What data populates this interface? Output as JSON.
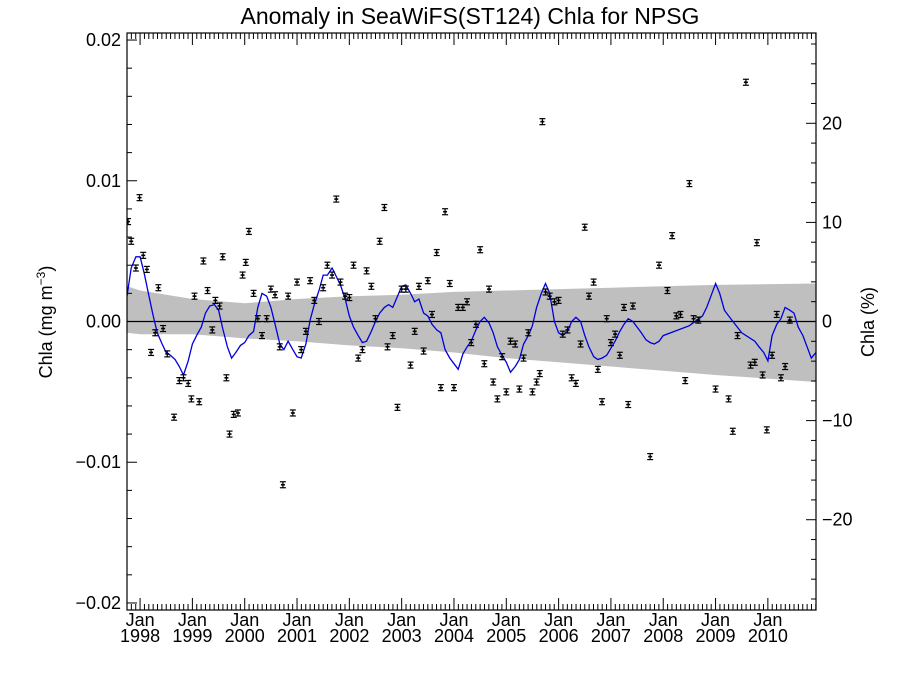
{
  "chart_data": {
    "type": "scatter",
    "title": "Anomaly in SeaWiFS(ST124) Chla for NPSG",
    "ylabel_left": "Chla (mg m",
    "ylabel_left_exponent": "−3",
    "ylabel_left_close": ")",
    "ylabel_right": "Chla (%)",
    "xlim": [
      1997.75,
      2010.92
    ],
    "ylim": [
      -0.0205,
      0.0205
    ],
    "y_ticks": [
      {
        "value": 0.02,
        "label": "0.02"
      },
      {
        "value": 0.01,
        "label": "0.01"
      },
      {
        "value": 0.0,
        "label": "0.00"
      },
      {
        "value": -0.01,
        "label": "−0.01"
      },
      {
        "value": -0.02,
        "label": "−0.02"
      }
    ],
    "y2_ticks": [
      {
        "value": 20,
        "label": "20"
      },
      {
        "value": 10,
        "label": "10"
      },
      {
        "value": 0,
        "label": "0"
      },
      {
        "value": -10,
        "label": "−10"
      },
      {
        "value": -20,
        "label": "−20"
      }
    ],
    "y2_per_y1": 1420,
    "x_ticks": [
      {
        "value": 1998.0,
        "month": "Jan",
        "year": "1998"
      },
      {
        "value": 1999.0,
        "month": "Jan",
        "year": "1999"
      },
      {
        "value": 2000.0,
        "month": "Jan",
        "year": "2000"
      },
      {
        "value": 2001.0,
        "month": "Jan",
        "year": "2001"
      },
      {
        "value": 2002.0,
        "month": "Jan",
        "year": "2002"
      },
      {
        "value": 2003.0,
        "month": "Jan",
        "year": "2003"
      },
      {
        "value": 2004.0,
        "month": "Jan",
        "year": "2004"
      },
      {
        "value": 2005.0,
        "month": "Jan",
        "year": "2005"
      },
      {
        "value": 2006.0,
        "month": "Jan",
        "year": "2006"
      },
      {
        "value": 2007.0,
        "month": "Jan",
        "year": "2007"
      },
      {
        "value": 2008.0,
        "month": "Jan",
        "year": "2008"
      },
      {
        "value": 2009.0,
        "month": "Jan",
        "year": "2009"
      },
      {
        "value": 2010.0,
        "month": "Jan",
        "year": "2010"
      }
    ],
    "zero_line": 0.0,
    "uncertainty_band": {
      "color": "#bfbfbf",
      "upper": [
        [
          1997.75,
          0.0025
        ],
        [
          1998.0,
          0.0022
        ],
        [
          1999.0,
          0.0016
        ],
        [
          2000.0,
          0.0013
        ],
        [
          2001.0,
          0.0016
        ],
        [
          2002.0,
          0.0018
        ],
        [
          2003.0,
          0.0019
        ],
        [
          2004.0,
          0.0021
        ],
        [
          2005.0,
          0.0022
        ],
        [
          2006.0,
          0.0023
        ],
        [
          2007.0,
          0.0024
        ],
        [
          2008.0,
          0.0025
        ],
        [
          2009.0,
          0.0026
        ],
        [
          2010.92,
          0.0027
        ]
      ],
      "lower": [
        [
          1997.75,
          -0.0008
        ],
        [
          1998.0,
          -0.0009
        ],
        [
          1999.0,
          -0.0009
        ],
        [
          2000.0,
          -0.0012
        ],
        [
          2001.0,
          -0.0014
        ],
        [
          2002.0,
          -0.0017
        ],
        [
          2003.0,
          -0.0019
        ],
        [
          2004.0,
          -0.0022
        ],
        [
          2005.0,
          -0.0026
        ],
        [
          2006.0,
          -0.0029
        ],
        [
          2007.0,
          -0.0032
        ],
        [
          2008.0,
          -0.0035
        ],
        [
          2009.0,
          -0.0038
        ],
        [
          2010.92,
          -0.0043
        ]
      ]
    },
    "series": [
      {
        "type": "line",
        "color": "#0000dd",
        "x": [
          1997.75,
          1997.83,
          1997.92,
          1998.0,
          1998.08,
          1998.17,
          1998.25,
          1998.33,
          1998.42,
          1998.5,
          1998.58,
          1998.67,
          1998.75,
          1998.83,
          1998.92,
          1999.0,
          1999.08,
          1999.17,
          1999.25,
          1999.33,
          1999.42,
          1999.5,
          1999.58,
          1999.67,
          1999.75,
          1999.83,
          1999.92,
          2000.0,
          2000.08,
          2000.17,
          2000.25,
          2000.33,
          2000.42,
          2000.5,
          2000.58,
          2000.67,
          2000.75,
          2000.83,
          2000.92,
          2001.0,
          2001.08,
          2001.17,
          2001.25,
          2001.33,
          2001.42,
          2001.5,
          2001.58,
          2001.67,
          2001.75,
          2001.83,
          2001.92,
          2002.0,
          2002.08,
          2002.17,
          2002.25,
          2002.33,
          2002.42,
          2002.5,
          2002.58,
          2002.67,
          2002.75,
          2002.83,
          2002.92,
          2003.0,
          2003.08,
          2003.17,
          2003.25,
          2003.33,
          2003.42,
          2003.5,
          2003.58,
          2003.67,
          2003.75,
          2003.83,
          2003.92,
          2004.0,
          2004.08,
          2004.17,
          2004.25,
          2004.33,
          2004.42,
          2004.5,
          2004.58,
          2004.67,
          2004.75,
          2004.83,
          2004.92,
          2005.0,
          2005.08,
          2005.17,
          2005.25,
          2005.33,
          2005.42,
          2005.5,
          2005.58,
          2005.67,
          2005.75,
          2005.83,
          2005.92,
          2006.0,
          2006.08,
          2006.17,
          2006.25,
          2006.33,
          2006.42,
          2006.5,
          2006.58,
          2006.67,
          2006.75,
          2006.83,
          2006.92,
          2007.0,
          2007.08,
          2007.17,
          2007.25,
          2007.33,
          2007.42,
          2007.5,
          2007.58,
          2007.67,
          2007.75,
          2007.83,
          2007.92,
          2008.0,
          2008.5,
          2008.75,
          2008.83,
          2008.92,
          2009.0,
          2009.08,
          2009.17,
          2009.25,
          2009.5,
          2009.75,
          2009.83,
          2009.92,
          2010.0,
          2010.08,
          2010.17,
          2010.25,
          2010.33,
          2010.42,
          2010.5,
          2010.58,
          2010.67,
          2010.75,
          2010.83,
          2010.92
        ],
        "values": [
          0.0018,
          0.0038,
          0.0046,
          0.0046,
          0.0034,
          0.0018,
          0.0004,
          -0.0008,
          -0.0016,
          -0.0022,
          -0.0024,
          -0.0027,
          -0.0032,
          -0.0038,
          -0.0028,
          -0.0016,
          -0.001,
          -0.0004,
          0.0006,
          0.0011,
          0.0012,
          0.0008,
          -0.0005,
          -0.0018,
          -0.0026,
          -0.0022,
          -0.0017,
          -0.0015,
          -0.001,
          -0.0007,
          0.001,
          0.002,
          0.0018,
          0.001,
          -0.0002,
          -0.0016,
          -0.002,
          -0.0014,
          -0.002,
          -0.0025,
          -0.0026,
          -0.0016,
          0.0001,
          0.0012,
          0.0022,
          0.0033,
          0.0033,
          0.0038,
          0.0032,
          0.0026,
          0.0016,
          0.0004,
          -0.0004,
          -0.001,
          -0.0015,
          -0.0014,
          -0.0007,
          0.0,
          0.0006,
          0.001,
          0.0012,
          0.001,
          0.0018,
          0.0025,
          0.0026,
          0.002,
          0.0014,
          0.0016,
          0.0006,
          0.0004,
          -0.0002,
          -0.0006,
          -0.0008,
          -0.002,
          -0.0026,
          -0.003,
          -0.0034,
          -0.0023,
          -0.0018,
          -0.0014,
          -0.0006,
          0.0,
          0.0003,
          -0.0001,
          -0.0008,
          -0.0018,
          -0.0024,
          -0.0029,
          -0.0036,
          -0.0032,
          -0.0027,
          -0.0016,
          -0.001,
          -0.0003,
          0.001,
          0.002,
          0.0027,
          0.002,
          0.0,
          -0.0008,
          -0.001,
          -0.0007,
          0.0,
          0.0003,
          0.0,
          -0.001,
          -0.0018,
          -0.0025,
          -0.0027,
          -0.0026,
          -0.0024,
          -0.0019,
          -0.0014,
          -0.0007,
          -0.0002,
          0.0002,
          0.0,
          -0.0004,
          -0.0008,
          -0.0013,
          -0.0015,
          -0.0016,
          -0.0014,
          -0.001,
          -0.0003,
          0.0004,
          0.001,
          0.0019,
          0.0027,
          0.002,
          0.0008,
          0.0004,
          -0.0008,
          -0.0014,
          -0.0018,
          -0.0022,
          -0.0028,
          -0.001,
          -0.0002,
          0.0002,
          0.001,
          0.0008,
          0.0006,
          -0.0004,
          -0.001,
          -0.0018,
          -0.0026,
          -0.0022
        ]
      },
      {
        "type": "scatter_errorbar",
        "color": "#000000",
        "points": [
          [
            1997.77,
            0.0071
          ],
          [
            1997.83,
            0.0057
          ],
          [
            1997.92,
            0.0038
          ],
          [
            1997.99,
            0.0088
          ],
          [
            1998.06,
            0.0047
          ],
          [
            1998.13,
            0.0037
          ],
          [
            1998.21,
            -0.0022
          ],
          [
            1998.29,
            -0.0008
          ],
          [
            1998.35,
            0.0024
          ],
          [
            1998.44,
            -0.0005
          ],
          [
            1998.52,
            -0.0023
          ],
          [
            1998.65,
            -0.0068
          ],
          [
            1998.75,
            -0.0042
          ],
          [
            1998.83,
            -0.004
          ],
          [
            1998.92,
            -0.0044
          ],
          [
            1998.98,
            -0.0055
          ],
          [
            1999.04,
            0.0018
          ],
          [
            1999.13,
            -0.0057
          ],
          [
            1999.21,
            0.0043
          ],
          [
            1999.29,
            0.0022
          ],
          [
            1999.38,
            -0.0006
          ],
          [
            1999.44,
            0.0015
          ],
          [
            1999.52,
            0.0011
          ],
          [
            1999.58,
            0.0046
          ],
          [
            1999.65,
            -0.004
          ],
          [
            1999.71,
            -0.008
          ],
          [
            1999.79,
            -0.0066
          ],
          [
            1999.87,
            -0.0065
          ],
          [
            1999.96,
            0.0033
          ],
          [
            2000.02,
            0.0042
          ],
          [
            2000.08,
            0.0064
          ],
          [
            2000.17,
            0.002
          ],
          [
            2000.25,
            0.0002
          ],
          [
            2000.33,
            -0.001
          ],
          [
            2000.42,
            0.0002
          ],
          [
            2000.5,
            0.0023
          ],
          [
            2000.58,
            0.0019
          ],
          [
            2000.67,
            -0.0018
          ],
          [
            2000.73,
            -0.0116
          ],
          [
            2000.83,
            0.0018
          ],
          [
            2000.92,
            -0.0065
          ],
          [
            2001.0,
            0.0028
          ],
          [
            2001.08,
            -0.002
          ],
          [
            2001.17,
            -0.0007
          ],
          [
            2001.25,
            0.0029
          ],
          [
            2001.33,
            0.0015
          ],
          [
            2001.42,
            0.0
          ],
          [
            2001.5,
            0.0024
          ],
          [
            2001.58,
            0.004
          ],
          [
            2001.67,
            0.0033
          ],
          [
            2001.75,
            0.0087
          ],
          [
            2001.83,
            0.0028
          ],
          [
            2001.92,
            0.0018
          ],
          [
            2002.0,
            0.0017
          ],
          [
            2002.08,
            0.004
          ],
          [
            2002.17,
            -0.0026
          ],
          [
            2002.25,
            -0.002
          ],
          [
            2002.33,
            0.0036
          ],
          [
            2002.42,
            0.0025
          ],
          [
            2002.5,
            0.0002
          ],
          [
            2002.58,
            0.0057
          ],
          [
            2002.67,
            0.0081
          ],
          [
            2002.73,
            -0.0018
          ],
          [
            2002.83,
            -0.001
          ],
          [
            2002.92,
            -0.0061
          ],
          [
            2003.0,
            0.0023
          ],
          [
            2003.08,
            0.0023
          ],
          [
            2003.17,
            -0.0031
          ],
          [
            2003.25,
            -0.0007
          ],
          [
            2003.33,
            0.0025
          ],
          [
            2003.42,
            -0.0021
          ],
          [
            2003.5,
            0.0029
          ],
          [
            2003.58,
            0.0005
          ],
          [
            2003.67,
            0.0049
          ],
          [
            2003.75,
            -0.0047
          ],
          [
            2003.83,
            0.0078
          ],
          [
            2003.92,
            0.0027
          ],
          [
            2004.0,
            -0.0047
          ],
          [
            2004.08,
            0.001
          ],
          [
            2004.17,
            0.001
          ],
          [
            2004.25,
            0.0014
          ],
          [
            2004.33,
            -0.0015
          ],
          [
            2004.42,
            -0.0002
          ],
          [
            2004.5,
            0.0051
          ],
          [
            2004.58,
            -0.003
          ],
          [
            2004.67,
            0.0023
          ],
          [
            2004.75,
            -0.0043
          ],
          [
            2004.83,
            -0.0055
          ],
          [
            2004.92,
            -0.0025
          ],
          [
            2005.0,
            -0.005
          ],
          [
            2005.08,
            -0.0014
          ],
          [
            2005.17,
            -0.0016
          ],
          [
            2005.25,
            -0.0048
          ],
          [
            2005.33,
            -0.0026
          ],
          [
            2005.42,
            -0.0008
          ],
          [
            2005.5,
            -0.005
          ],
          [
            2005.58,
            -0.0043
          ],
          [
            2005.64,
            -0.0037
          ],
          [
            2005.69,
            0.0142
          ],
          [
            2005.75,
            0.0021
          ],
          [
            2005.83,
            0.0018
          ],
          [
            2005.92,
            0.0014
          ],
          [
            2006.0,
            0.0015
          ],
          [
            2006.08,
            -0.0009
          ],
          [
            2006.17,
            -0.0006
          ],
          [
            2006.25,
            -0.004
          ],
          [
            2006.33,
            -0.0044
          ],
          [
            2006.42,
            -0.0016
          ],
          [
            2006.5,
            0.0067
          ],
          [
            2006.58,
            0.0018
          ],
          [
            2006.67,
            0.0028
          ],
          [
            2006.75,
            -0.0034
          ],
          [
            2006.83,
            -0.0057
          ],
          [
            2006.92,
            0.0002
          ],
          [
            2007.0,
            -0.0015
          ],
          [
            2007.08,
            -0.0009
          ],
          [
            2007.17,
            -0.0024
          ],
          [
            2007.25,
            0.001
          ],
          [
            2007.33,
            -0.0059
          ],
          [
            2007.42,
            0.0011
          ],
          [
            2007.75,
            -0.0096
          ],
          [
            2007.92,
            0.004
          ],
          [
            2008.08,
            0.0022
          ],
          [
            2008.17,
            0.0061
          ],
          [
            2008.25,
            0.0004
          ],
          [
            2008.33,
            0.0005
          ],
          [
            2008.42,
            -0.0042
          ],
          [
            2008.5,
            0.0098
          ],
          [
            2008.58,
            0.0002
          ],
          [
            2008.67,
            0.0001
          ],
          [
            2009.0,
            -0.0048
          ],
          [
            2009.25,
            -0.0055
          ],
          [
            2009.33,
            -0.0078
          ],
          [
            2009.42,
            -0.001
          ],
          [
            2009.58,
            0.017
          ],
          [
            2009.67,
            -0.0031
          ],
          [
            2009.75,
            -0.0029
          ],
          [
            2009.79,
            0.0056
          ],
          [
            2009.9,
            -0.0038
          ],
          [
            2009.98,
            -0.0077
          ],
          [
            2010.08,
            -0.0024
          ],
          [
            2010.17,
            0.0005
          ],
          [
            2010.25,
            -0.004
          ],
          [
            2010.33,
            -0.0032
          ],
          [
            2010.42,
            0.0001
          ]
        ]
      }
    ]
  }
}
